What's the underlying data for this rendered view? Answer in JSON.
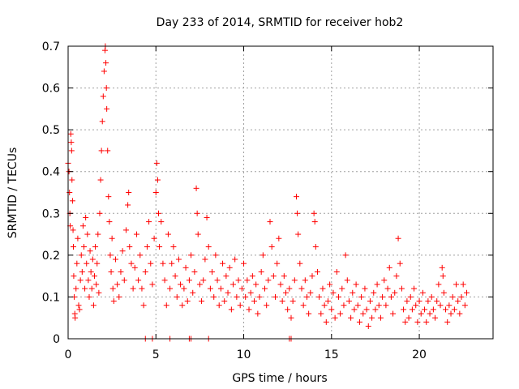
{
  "chart_data": {
    "type": "scatter",
    "title": "Day 233 of 2014, SRMTID for receiver hob2",
    "xlabel": "GPS time / hours",
    "ylabel": "SRMTID / TECUs",
    "xlim": [
      0,
      24.2
    ],
    "ylim": [
      0,
      0.7
    ],
    "xticks": [
      0,
      5,
      10,
      15,
      20
    ],
    "xtick_labels": [
      "0",
      "5",
      "10",
      "15",
      "20"
    ],
    "yticks": [
      0,
      0.1,
      0.2,
      0.3,
      0.4,
      0.5,
      0.6,
      0.7
    ],
    "ytick_labels": [
      "0",
      "0.1",
      "0.2",
      "0.3",
      "0.4",
      "0.5",
      "0.6",
      "0.7"
    ],
    "grid": true,
    "marker": "+",
    "color": "#ff0000",
    "series": [
      {
        "name": "SRMTID",
        "points": [
          [
            0.0,
            0.42
          ],
          [
            0.05,
            0.4
          ],
          [
            0.08,
            0.35
          ],
          [
            0.1,
            0.3
          ],
          [
            0.12,
            0.27
          ],
          [
            0.15,
            0.49
          ],
          [
            0.18,
            0.47
          ],
          [
            0.2,
            0.45
          ],
          [
            0.22,
            0.38
          ],
          [
            0.25,
            0.33
          ],
          [
            0.28,
            0.26
          ],
          [
            0.3,
            0.22
          ],
          [
            0.32,
            0.15
          ],
          [
            0.35,
            0.1
          ],
          [
            0.38,
            0.06
          ],
          [
            0.4,
            0.05
          ],
          [
            0.45,
            0.12
          ],
          [
            0.5,
            0.18
          ],
          [
            0.55,
            0.24
          ],
          [
            0.6,
            0.08
          ],
          [
            0.65,
            0.07
          ],
          [
            0.7,
            0.14
          ],
          [
            0.75,
            0.2
          ],
          [
            0.8,
            0.16
          ],
          [
            0.85,
            0.27
          ],
          [
            0.9,
            0.22
          ],
          [
            0.95,
            0.12
          ],
          [
            1.0,
            0.29
          ],
          [
            1.05,
            0.18
          ],
          [
            1.1,
            0.25
          ],
          [
            1.15,
            0.14
          ],
          [
            1.2,
            0.1
          ],
          [
            1.25,
            0.21
          ],
          [
            1.3,
            0.16
          ],
          [
            1.35,
            0.12
          ],
          [
            1.4,
            0.19
          ],
          [
            1.45,
            0.08
          ],
          [
            1.5,
            0.15
          ],
          [
            1.55,
            0.22
          ],
          [
            1.6,
            0.13
          ],
          [
            1.65,
            0.18
          ],
          [
            1.7,
            0.25
          ],
          [
            1.75,
            0.11
          ],
          [
            1.8,
            0.3
          ],
          [
            1.85,
            0.38
          ],
          [
            1.9,
            0.45
          ],
          [
            1.95,
            0.52
          ],
          [
            2.0,
            0.58
          ],
          [
            2.05,
            0.64
          ],
          [
            2.1,
            0.69
          ],
          [
            2.12,
            0.7
          ],
          [
            2.15,
            0.66
          ],
          [
            2.18,
            0.6
          ],
          [
            2.2,
            0.55
          ],
          [
            2.25,
            0.45
          ],
          [
            2.3,
            0.34
          ],
          [
            2.35,
            0.28
          ],
          [
            2.4,
            0.2
          ],
          [
            2.45,
            0.16
          ],
          [
            2.5,
            0.24
          ],
          [
            2.55,
            0.12
          ],
          [
            2.6,
            0.09
          ],
          [
            2.7,
            0.19
          ],
          [
            2.8,
            0.13
          ],
          [
            2.9,
            0.1
          ],
          [
            3.0,
            0.16
          ],
          [
            3.1,
            0.21
          ],
          [
            3.2,
            0.14
          ],
          [
            3.3,
            0.26
          ],
          [
            3.4,
            0.32
          ],
          [
            3.45,
            0.35
          ],
          [
            3.5,
            0.22
          ],
          [
            3.6,
            0.18
          ],
          [
            3.7,
            0.12
          ],
          [
            3.8,
            0.17
          ],
          [
            3.9,
            0.25
          ],
          [
            4.0,
            0.14
          ],
          [
            4.1,
            0.2
          ],
          [
            4.2,
            0.12
          ],
          [
            4.3,
            0.08
          ],
          [
            4.4,
            0.16
          ],
          [
            4.5,
            0.22
          ],
          [
            4.6,
            0.28
          ],
          [
            4.7,
            0.18
          ],
          [
            4.8,
            0.13
          ],
          [
            4.9,
            0.24
          ],
          [
            5.0,
            0.35
          ],
          [
            5.05,
            0.42
          ],
          [
            5.1,
            0.38
          ],
          [
            5.15,
            0.3
          ],
          [
            5.2,
            0.22
          ],
          [
            5.3,
            0.28
          ],
          [
            5.4,
            0.18
          ],
          [
            5.5,
            0.14
          ],
          [
            5.6,
            0.08
          ],
          [
            5.7,
            0.25
          ],
          [
            5.8,
            0.12
          ],
          [
            5.9,
            0.18
          ],
          [
            6.0,
            0.22
          ],
          [
            6.1,
            0.15
          ],
          [
            6.2,
            0.1
          ],
          [
            6.3,
            0.19
          ],
          [
            6.4,
            0.13
          ],
          [
            6.5,
            0.08
          ],
          [
            6.6,
            0.12
          ],
          [
            6.7,
            0.17
          ],
          [
            6.8,
            0.09
          ],
          [
            6.9,
            0.14
          ],
          [
            7.0,
            0.2
          ],
          [
            7.1,
            0.11
          ],
          [
            7.2,
            0.16
          ],
          [
            7.3,
            0.36
          ],
          [
            7.35,
            0.3
          ],
          [
            7.4,
            0.25
          ],
          [
            7.5,
            0.13
          ],
          [
            7.6,
            0.09
          ],
          [
            7.7,
            0.14
          ],
          [
            7.8,
            0.19
          ],
          [
            7.9,
            0.29
          ],
          [
            8.0,
            0.22
          ],
          [
            8.1,
            0.12
          ],
          [
            8.2,
            0.16
          ],
          [
            8.3,
            0.1
          ],
          [
            8.4,
            0.2
          ],
          [
            8.5,
            0.14
          ],
          [
            8.6,
            0.08
          ],
          [
            8.7,
            0.12
          ],
          [
            8.8,
            0.18
          ],
          [
            8.9,
            0.09
          ],
          [
            9.0,
            0.15
          ],
          [
            9.1,
            0.11
          ],
          [
            9.2,
            0.17
          ],
          [
            9.3,
            0.07
          ],
          [
            9.4,
            0.13
          ],
          [
            9.5,
            0.19
          ],
          [
            9.6,
            0.1
          ],
          [
            9.7,
            0.14
          ],
          [
            9.8,
            0.08
          ],
          [
            9.9,
            0.12
          ],
          [
            10.0,
            0.18
          ],
          [
            10.1,
            0.1
          ],
          [
            10.2,
            0.14
          ],
          [
            10.3,
            0.07
          ],
          [
            10.4,
            0.11
          ],
          [
            10.5,
            0.15
          ],
          [
            10.6,
            0.09
          ],
          [
            10.7,
            0.13
          ],
          [
            10.8,
            0.06
          ],
          [
            10.9,
            0.1
          ],
          [
            11.0,
            0.16
          ],
          [
            11.1,
            0.2
          ],
          [
            11.2,
            0.12
          ],
          [
            11.3,
            0.08
          ],
          [
            11.4,
            0.14
          ],
          [
            11.5,
            0.28
          ],
          [
            11.6,
            0.22
          ],
          [
            11.7,
            0.15
          ],
          [
            11.8,
            0.1
          ],
          [
            11.9,
            0.18
          ],
          [
            12.0,
            0.24
          ],
          [
            12.1,
            0.13
          ],
          [
            12.2,
            0.09
          ],
          [
            12.3,
            0.15
          ],
          [
            12.4,
            0.11
          ],
          [
            12.5,
            0.07
          ],
          [
            12.6,
            0.12
          ],
          [
            12.7,
            0.05
          ],
          [
            12.8,
            0.09
          ],
          [
            12.9,
            0.14
          ],
          [
            13.0,
            0.34
          ],
          [
            13.05,
            0.3
          ],
          [
            13.1,
            0.25
          ],
          [
            13.2,
            0.18
          ],
          [
            13.3,
            0.12
          ],
          [
            13.4,
            0.08
          ],
          [
            13.5,
            0.14
          ],
          [
            13.6,
            0.1
          ],
          [
            13.7,
            0.06
          ],
          [
            13.8,
            0.11
          ],
          [
            13.9,
            0.15
          ],
          [
            14.0,
            0.3
          ],
          [
            14.05,
            0.28
          ],
          [
            14.1,
            0.22
          ],
          [
            14.2,
            0.16
          ],
          [
            14.3,
            0.1
          ],
          [
            14.4,
            0.06
          ],
          [
            14.5,
            0.12
          ],
          [
            14.6,
            0.08
          ],
          [
            14.7,
            0.04
          ],
          [
            14.8,
            0.09
          ],
          [
            14.9,
            0.13
          ],
          [
            15.0,
            0.07
          ],
          [
            15.1,
            0.11
          ],
          [
            15.2,
            0.05
          ],
          [
            15.3,
            0.16
          ],
          [
            15.4,
            0.1
          ],
          [
            15.5,
            0.06
          ],
          [
            15.6,
            0.12
          ],
          [
            15.7,
            0.08
          ],
          [
            15.8,
            0.2
          ],
          [
            15.9,
            0.14
          ],
          [
            16.0,
            0.09
          ],
          [
            16.1,
            0.05
          ],
          [
            16.2,
            0.11
          ],
          [
            16.3,
            0.07
          ],
          [
            16.4,
            0.13
          ],
          [
            16.5,
            0.08
          ],
          [
            16.6,
            0.04
          ],
          [
            16.7,
            0.1
          ],
          [
            16.8,
            0.06
          ],
          [
            16.9,
            0.12
          ],
          [
            17.0,
            0.07
          ],
          [
            17.1,
            0.03
          ],
          [
            17.2,
            0.09
          ],
          [
            17.3,
            0.05
          ],
          [
            17.4,
            0.11
          ],
          [
            17.5,
            0.07
          ],
          [
            17.6,
            0.13
          ],
          [
            17.7,
            0.08
          ],
          [
            17.8,
            0.05
          ],
          [
            17.9,
            0.1
          ],
          [
            18.0,
            0.14
          ],
          [
            18.1,
            0.08
          ],
          [
            18.2,
            0.12
          ],
          [
            18.3,
            0.17
          ],
          [
            18.4,
            0.1
          ],
          [
            18.5,
            0.06
          ],
          [
            18.6,
            0.11
          ],
          [
            18.7,
            0.15
          ],
          [
            18.8,
            0.24
          ],
          [
            18.9,
            0.18
          ],
          [
            19.0,
            0.12
          ],
          [
            19.1,
            0.07
          ],
          [
            19.2,
            0.04
          ],
          [
            19.3,
            0.09
          ],
          [
            19.4,
            0.05
          ],
          [
            19.5,
            0.1
          ],
          [
            19.6,
            0.07
          ],
          [
            19.7,
            0.12
          ],
          [
            19.8,
            0.08
          ],
          [
            19.9,
            0.04
          ],
          [
            20.0,
            0.09
          ],
          [
            20.1,
            0.06
          ],
          [
            20.2,
            0.11
          ],
          [
            20.3,
            0.07
          ],
          [
            20.4,
            0.04
          ],
          [
            20.5,
            0.09
          ],
          [
            20.6,
            0.06
          ],
          [
            20.7,
            0.1
          ],
          [
            20.8,
            0.07
          ],
          [
            20.9,
            0.05
          ],
          [
            21.0,
            0.09
          ],
          [
            21.1,
            0.13
          ],
          [
            21.2,
            0.08
          ],
          [
            21.3,
            0.17
          ],
          [
            21.35,
            0.15
          ],
          [
            21.4,
            0.11
          ],
          [
            21.5,
            0.07
          ],
          [
            21.6,
            0.04
          ],
          [
            21.7,
            0.08
          ],
          [
            21.8,
            0.06
          ],
          [
            21.9,
            0.1
          ],
          [
            22.0,
            0.07
          ],
          [
            22.1,
            0.13
          ],
          [
            22.2,
            0.09
          ],
          [
            22.3,
            0.06
          ],
          [
            22.4,
            0.1
          ],
          [
            22.5,
            0.13
          ],
          [
            22.6,
            0.08
          ],
          [
            22.7,
            0.11
          ],
          [
            4.4,
            0.0
          ],
          [
            4.8,
            0.0
          ],
          [
            5.8,
            0.0
          ],
          [
            6.9,
            0.0
          ],
          [
            7.0,
            0.0
          ],
          [
            8.0,
            0.0
          ],
          [
            12.6,
            0.0
          ],
          [
            12.7,
            0.0
          ]
        ]
      }
    ]
  }
}
